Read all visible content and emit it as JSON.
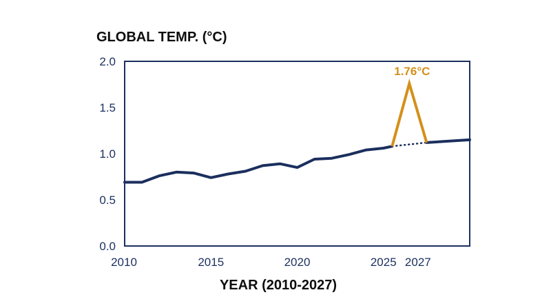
{
  "chart_data": {
    "type": "line",
    "title": "GLOBAL TEMP. (°C)",
    "xlabel": "YEAR (2010-2027)",
    "ylabel": "",
    "xlim": [
      2010,
      2030
    ],
    "ylim": [
      0.0,
      2.0
    ],
    "x_ticks": [
      2010,
      2015,
      2020,
      2025,
      2027
    ],
    "x_tick_labels": [
      "2010",
      "2015",
      "2020",
      "2025",
      "2027"
    ],
    "y_ticks": [
      0.0,
      0.5,
      1.0,
      1.5,
      2.0
    ],
    "y_tick_labels": [
      "0.0",
      "0.5",
      "1.0",
      "1.5",
      "2.0"
    ],
    "grid": false,
    "legend": "none",
    "series": [
      {
        "x": [
          2010,
          2011,
          2012,
          2013,
          2014,
          2015,
          2016,
          2017,
          2018,
          2019,
          2020,
          2021,
          2022,
          2023,
          2024,
          2025,
          2025.5
        ],
        "values": [
          0.69,
          0.69,
          0.76,
          0.8,
          0.79,
          0.74,
          0.78,
          0.81,
          0.87,
          0.89,
          0.85,
          0.94,
          0.95,
          0.99,
          1.04,
          1.06,
          1.08
        ]
      },
      {
        "style": "dotted",
        "x": [
          2025.5,
          2027.5
        ],
        "values": [
          1.08,
          1.12
        ]
      },
      {
        "x": [
          2027.5,
          2030
        ],
        "values": [
          1.12,
          1.15
        ]
      },
      {
        "style": "spike",
        "x": [
          2025.5,
          2026.5,
          2027.5
        ],
        "values": [
          1.08,
          1.76,
          1.12
        ]
      }
    ],
    "annotations": [
      {
        "text": "1.76°C",
        "x": 2026.5,
        "y": 1.76
      }
    ],
    "colors": {
      "line": "#1b2f5e",
      "spike": "#d4901a",
      "axis": "#1b2f5e",
      "text": "#0d0d0d"
    }
  }
}
